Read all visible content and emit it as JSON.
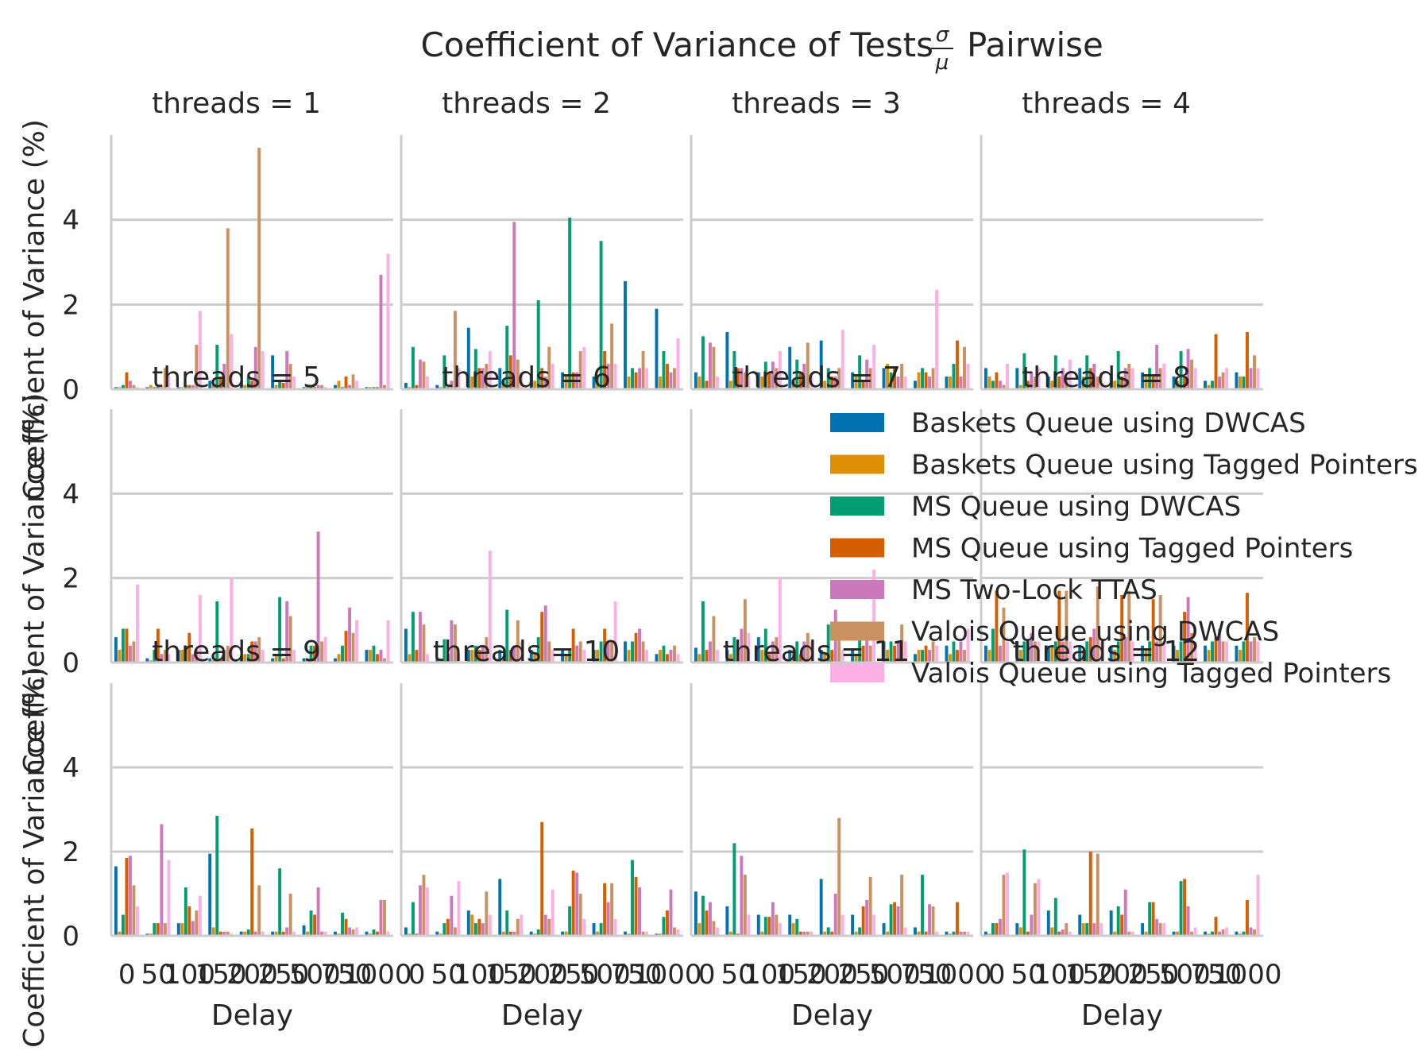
{
  "chart_data": {
    "type": "bar",
    "title": "Coefficient of Variance of Tests",
    "title_fraction": {
      "numerator": "σ",
      "denominator": "μ"
    },
    "title_suffix": "Pairwise",
    "xlabel": "Delay",
    "ylabel": "Coefficient of Variance (%)",
    "ylim": [
      0,
      6
    ],
    "yticks": [
      0,
      2,
      4
    ],
    "grid": true,
    "legend_position": "right (overlapping threads = 8 panel)",
    "categories": [
      "0",
      "50",
      "100",
      "150",
      "200",
      "250",
      "500",
      "750",
      "1000"
    ],
    "series_names": [
      "Baskets Queue using DWCAS",
      "Baskets Queue using Tagged Pointers",
      "MS Queue using DWCAS",
      "MS Queue using Tagged Pointers",
      "MS Two-Lock TTAS",
      "Valois Queue using DWCAS",
      "Valois Queue using Tagged Pointers"
    ],
    "colors": [
      "#0173b2",
      "#de8f05",
      "#029e73",
      "#d55e00",
      "#cc78bc",
      "#ca9161",
      "#fbafe4"
    ],
    "panels": [
      {
        "title": "threads = 1",
        "values": [
          [
            0.05,
            0.05,
            0.1,
            0.4,
            0.2,
            0.1,
            0.05
          ],
          [
            0.05,
            0.1,
            0.05,
            0.1,
            0.05,
            0.5,
            0.3
          ],
          [
            0.05,
            0.05,
            0.1,
            0.1,
            0.1,
            1.05,
            1.85
          ],
          [
            0.2,
            0.1,
            1.05,
            0.3,
            0.6,
            3.8,
            1.3
          ],
          [
            0.1,
            0.1,
            0.3,
            0.2,
            1.0,
            5.7,
            0.9
          ],
          [
            0.8,
            0.1,
            0.2,
            0.15,
            0.9,
            0.6,
            0.3
          ],
          [
            0.05,
            0.1,
            0.05,
            0.05,
            0.1,
            0.1,
            0.05
          ],
          [
            0.1,
            0.2,
            0.05,
            0.3,
            0.1,
            0.35,
            0.2
          ],
          [
            0.05,
            0.05,
            0.05,
            0.05,
            2.7,
            0.1,
            3.2
          ]
        ]
      },
      {
        "title": "threads = 2",
        "values": [
          [
            0.15,
            0.05,
            1.0,
            0.1,
            0.7,
            0.65,
            0.3
          ],
          [
            0.1,
            0.05,
            0.8,
            0.05,
            0.2,
            1.85,
            0.5
          ],
          [
            1.45,
            0.3,
            0.95,
            0.5,
            0.5,
            0.6,
            0.9
          ],
          [
            0.5,
            0.2,
            1.5,
            0.8,
            3.95,
            0.7,
            0.4
          ],
          [
            0.3,
            0.2,
            2.1,
            0.5,
            0.3,
            1.0,
            0.6
          ],
          [
            0.4,
            0.3,
            4.05,
            0.4,
            0.4,
            0.9,
            1.0
          ],
          [
            0.3,
            0.3,
            3.5,
            0.9,
            0.6,
            1.55,
            0.6
          ],
          [
            2.55,
            0.3,
            0.5,
            0.4,
            0.5,
            0.9,
            0.5
          ],
          [
            1.9,
            0.3,
            0.9,
            0.6,
            0.4,
            0.5,
            1.2
          ]
        ]
      },
      {
        "title": "threads = 3",
        "values": [
          [
            0.4,
            0.3,
            1.25,
            0.2,
            1.1,
            1.0,
            0.3
          ],
          [
            1.35,
            0.2,
            0.9,
            0.5,
            0.5,
            0.4,
            0.3
          ],
          [
            0.4,
            0.3,
            0.65,
            0.4,
            0.65,
            0.5,
            0.9
          ],
          [
            1.0,
            0.2,
            0.7,
            0.4,
            0.6,
            1.1,
            0.3
          ],
          [
            1.15,
            0.2,
            0.5,
            0.3,
            0.3,
            0.5,
            1.4
          ],
          [
            0.4,
            0.3,
            0.8,
            0.2,
            0.7,
            0.5,
            1.05
          ],
          [
            0.5,
            0.6,
            0.4,
            0.5,
            0.3,
            0.6,
            0.3
          ],
          [
            0.2,
            0.4,
            0.5,
            0.4,
            0.3,
            0.5,
            2.35
          ],
          [
            0.3,
            0.3,
            0.6,
            1.15,
            0.3,
            1.0,
            0.6
          ]
        ]
      },
      {
        "title": "threads = 4",
        "values": [
          [
            0.5,
            0.3,
            0.2,
            0.4,
            0.2,
            0.1,
            0.6
          ],
          [
            0.5,
            0.1,
            0.85,
            0.2,
            0.4,
            0.3,
            0.5
          ],
          [
            0.3,
            0.2,
            0.8,
            0.3,
            0.5,
            0.3,
            0.7
          ],
          [
            0.5,
            0.3,
            0.8,
            0.5,
            0.6,
            0.3,
            0.4
          ],
          [
            0.3,
            0.2,
            0.9,
            0.3,
            0.5,
            0.6,
            0.5
          ],
          [
            0.4,
            0.3,
            0.5,
            0.3,
            1.05,
            0.5,
            0.6
          ],
          [
            0.3,
            0.2,
            0.9,
            0.3,
            0.95,
            0.7,
            0.5
          ],
          [
            0.2,
            0.1,
            0.2,
            1.3,
            0.3,
            0.4,
            0.5
          ],
          [
            0.4,
            0.3,
            0.3,
            1.35,
            0.5,
            0.8,
            0.5
          ]
        ]
      },
      {
        "title": "threads = 5",
        "values": [
          [
            0.6,
            0.3,
            0.8,
            0.8,
            0.4,
            0.5,
            1.85
          ],
          [
            0.1,
            0.05,
            0.3,
            0.8,
            0.2,
            0.3,
            0.2
          ],
          [
            0.3,
            0.3,
            0.4,
            0.7,
            0.2,
            0.3,
            1.6
          ],
          [
            0.1,
            0.05,
            1.45,
            0.1,
            0.3,
            0.4,
            2.0
          ],
          [
            0.1,
            0.2,
            0.2,
            0.5,
            0.5,
            0.6,
            0.3
          ],
          [
            0.1,
            0.2,
            1.55,
            0.1,
            1.45,
            1.1,
            0.3
          ],
          [
            0.1,
            0.1,
            0.4,
            0.4,
            3.1,
            0.5,
            0.6
          ],
          [
            0.1,
            0.2,
            0.4,
            0.75,
            1.3,
            0.7,
            1.0
          ],
          [
            0.3,
            0.3,
            0.4,
            0.2,
            0.3,
            0.1,
            1.0
          ]
        ]
      },
      {
        "title": "threads = 6",
        "values": [
          [
            0.8,
            0.2,
            1.2,
            0.3,
            1.2,
            0.9,
            0.2
          ],
          [
            0.1,
            0.1,
            0.55,
            0.2,
            1.0,
            0.9,
            0.2
          ],
          [
            0.3,
            0.3,
            0.4,
            0.3,
            0.4,
            0.6,
            2.65
          ],
          [
            0.3,
            0.1,
            1.25,
            0.3,
            0.4,
            1.0,
            0.5
          ],
          [
            0.3,
            0.2,
            0.6,
            1.2,
            1.35,
            0.5,
            0.3
          ],
          [
            0.3,
            0.2,
            0.3,
            0.8,
            0.4,
            0.5,
            0.3
          ],
          [
            0.3,
            0.3,
            0.5,
            0.8,
            0.5,
            0.5,
            1.45
          ],
          [
            0.5,
            0.3,
            0.5,
            0.7,
            0.8,
            0.5,
            0.3
          ],
          [
            0.2,
            0.3,
            0.4,
            0.2,
            0.3,
            0.4,
            0.2
          ]
        ]
      },
      {
        "title": "threads = 7",
        "values": [
          [
            0.35,
            0.2,
            1.45,
            0.3,
            0.5,
            1.1,
            0.3
          ],
          [
            0.3,
            0.2,
            0.6,
            0.3,
            0.8,
            1.5,
            0.7
          ],
          [
            0.6,
            0.3,
            0.8,
            0.2,
            0.5,
            0.6,
            2.0
          ],
          [
            0.3,
            0.3,
            0.5,
            0.2,
            0.5,
            0.7,
            0.5
          ],
          [
            0.3,
            0.2,
            0.9,
            0.3,
            1.25,
            0.6,
            0.3
          ],
          [
            0.3,
            0.2,
            0.9,
            0.4,
            0.8,
            0.4,
            2.2
          ],
          [
            0.5,
            0.3,
            0.5,
            0.4,
            0.5,
            0.9,
            0.5
          ],
          [
            0.2,
            0.3,
            0.3,
            0.4,
            0.3,
            0.5,
            0.4
          ],
          [
            0.4,
            0.2,
            0.5,
            0.3,
            0.5,
            0.3,
            0.8
          ]
        ]
      },
      {
        "title": "threads = 8",
        "values": [
          [
            0.4,
            0.3,
            0.8,
            1.7,
            0.4,
            1.3,
            0.5
          ],
          [
            0.5,
            0.3,
            0.5,
            0.5,
            0.7,
            0.5,
            0.5
          ],
          [
            0.4,
            0.4,
            0.5,
            1.7,
            0.5,
            1.7,
            0.5
          ],
          [
            0.4,
            0.3,
            0.5,
            0.6,
            0.8,
            1.8,
            0.5
          ],
          [
            0.4,
            0.3,
            0.5,
            1.6,
            0.6,
            1.7,
            0.5
          ],
          [
            0.4,
            0.3,
            0.5,
            1.5,
            0.5,
            1.6,
            0.5
          ],
          [
            0.4,
            0.3,
            0.5,
            1.2,
            1.55,
            0.7,
            0.5
          ],
          [
            0.4,
            0.3,
            0.5,
            0.6,
            0.8,
            0.5,
            0.5
          ],
          [
            0.4,
            0.3,
            0.5,
            1.65,
            0.5,
            0.6,
            0.5
          ]
        ]
      },
      {
        "title": "threads = 9",
        "values": [
          [
            1.65,
            0.1,
            0.5,
            1.85,
            1.9,
            1.2,
            0.7
          ],
          [
            0.05,
            0.05,
            0.3,
            0.3,
            2.65,
            0.3,
            1.8
          ],
          [
            0.3,
            0.3,
            1.15,
            0.7,
            0.35,
            0.6,
            0.95
          ],
          [
            1.95,
            0.2,
            2.85,
            0.1,
            0.1,
            0.1,
            0.05
          ],
          [
            0.1,
            0.1,
            0.15,
            2.55,
            0.1,
            1.2,
            0.1
          ],
          [
            0.1,
            0.1,
            1.6,
            0.1,
            0.2,
            1.0,
            0.1
          ],
          [
            0.25,
            0.1,
            0.6,
            0.5,
            1.15,
            0.1,
            0.1
          ],
          [
            0.1,
            0.05,
            0.55,
            0.4,
            0.2,
            0.15,
            0.2
          ],
          [
            0.1,
            0.05,
            0.15,
            0.1,
            0.85,
            0.85,
            0.1
          ]
        ]
      },
      {
        "title": "threads = 10",
        "values": [
          [
            0.2,
            0.05,
            0.8,
            0.05,
            1.2,
            1.45,
            1.15
          ],
          [
            0.1,
            0.05,
            0.3,
            0.4,
            0.95,
            0.2,
            1.3
          ],
          [
            0.6,
            0.5,
            0.3,
            0.4,
            0.3,
            1.05,
            0.5
          ],
          [
            1.35,
            0.1,
            0.6,
            0.1,
            0.1,
            0.4,
            0.5
          ],
          [
            0.1,
            0.05,
            0.15,
            2.7,
            0.5,
            0.4,
            1.1
          ],
          [
            0.1,
            0.1,
            0.7,
            1.55,
            1.5,
            1.0,
            0.4
          ],
          [
            0.3,
            0.1,
            0.3,
            1.25,
            0.8,
            1.25,
            0.4
          ],
          [
            0.1,
            0.05,
            1.8,
            1.4,
            1.15,
            0.1,
            0.1
          ],
          [
            0.05,
            0.05,
            0.45,
            0.6,
            1.1,
            0.2,
            0.15
          ]
        ]
      },
      {
        "title": "threads = 11",
        "values": [
          [
            1.05,
            0.3,
            0.95,
            0.6,
            0.8,
            0.35,
            0.2
          ],
          [
            0.7,
            0.1,
            2.2,
            0.05,
            1.9,
            1.45,
            0.5
          ],
          [
            0.5,
            0.1,
            0.45,
            0.45,
            0.8,
            0.5,
            0.3
          ],
          [
            0.5,
            0.3,
            0.4,
            0.1,
            0.1,
            0.1,
            0.1
          ],
          [
            1.35,
            0.1,
            0.2,
            0.1,
            1.0,
            2.8,
            0.5
          ],
          [
            0.5,
            0.1,
            0.2,
            0.7,
            0.85,
            1.4,
            0.5
          ],
          [
            0.3,
            0.1,
            0.75,
            0.8,
            0.7,
            1.45,
            0.2
          ],
          [
            0.2,
            0.1,
            1.45,
            0.1,
            0.75,
            0.7,
            0.1
          ],
          [
            0.1,
            0.05,
            0.1,
            0.8,
            0.1,
            0.1,
            0.1
          ]
        ]
      },
      {
        "title": "threads = 12",
        "values": [
          [
            0.1,
            0.05,
            0.3,
            0.3,
            0.4,
            1.45,
            1.5
          ],
          [
            0.3,
            0.2,
            2.05,
            0.1,
            0.5,
            1.25,
            1.35
          ],
          [
            0.6,
            0.2,
            0.9,
            0.1,
            0.15,
            0.3,
            0.1
          ],
          [
            0.5,
            0.3,
            0.3,
            2.0,
            0.3,
            1.95,
            0.3
          ],
          [
            0.6,
            0.1,
            0.7,
            0.5,
            1.1,
            0.1,
            0.1
          ],
          [
            0.3,
            0.1,
            0.8,
            0.8,
            0.4,
            0.3,
            0.3
          ],
          [
            0.1,
            0.1,
            1.3,
            1.35,
            0.7,
            0.1,
            0.2
          ],
          [
            0.1,
            0.05,
            0.1,
            0.45,
            0.1,
            0.15,
            0.2
          ],
          [
            0.1,
            0.05,
            0.1,
            0.85,
            0.2,
            0.15,
            1.45
          ]
        ]
      }
    ]
  }
}
